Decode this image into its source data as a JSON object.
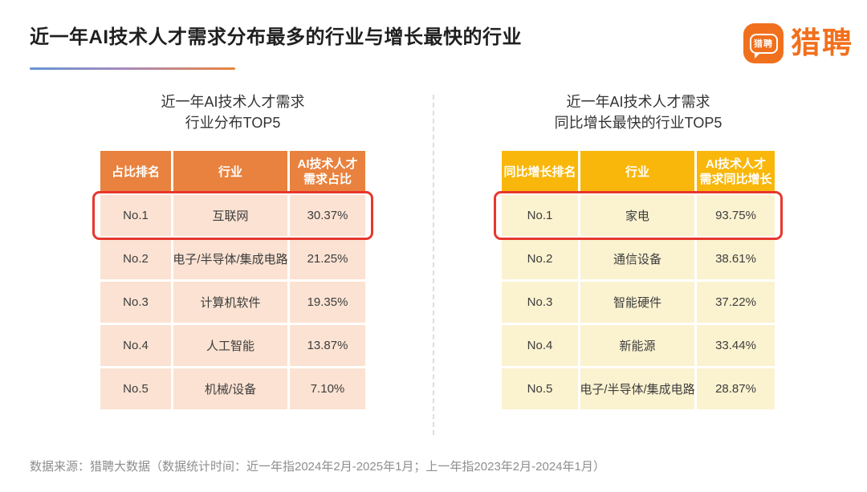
{
  "page": {
    "title": "近一年AI技术人才需求分布最多的行业与增长最快的行业",
    "footer": "数据来源：猎聘大数据（数据统计时间：近一年指2024年2月-2025年1月；上一年指2023年2月-2024年1月）"
  },
  "logo": {
    "brand": "猎聘",
    "icon_text": "猎聘"
  },
  "display": {
    "left": {
      "title": "近一年AI技术人才需求\n行业分布TOP5",
      "headers": [
        "占比排名",
        "行业",
        "AI技术人才\n需求占比"
      ]
    },
    "right": {
      "title": "近一年AI技术人才需求\n同比增长最快的行业TOP5",
      "headers": [
        "同比增长排名",
        "行业",
        "AI技术人才\n需求同比增长"
      ]
    }
  },
  "colors": {
    "brand_orange": "#F1701D",
    "left_header_bg": "#E8823E",
    "left_row_bg": "#FBE2D2",
    "right_header_bg": "#F9B70B",
    "right_row_bg": "#FBF2D0",
    "highlight_red": "#E7372C",
    "underline_gradient_start": "#6395D2",
    "underline_gradient_end": "#E8833C"
  },
  "chart_data": [
    {
      "type": "table",
      "title": "近一年AI技术人才需求 行业分布TOP5",
      "columns": [
        "占比排名",
        "行业",
        "AI技术人才需求占比"
      ],
      "rows": [
        [
          "No.1",
          "互联网",
          "30.37%"
        ],
        [
          "No.2",
          "电子/半导体/集成电路",
          "21.25%"
        ],
        [
          "No.3",
          "计算机软件",
          "19.35%"
        ],
        [
          "No.4",
          "人工智能",
          "13.87%"
        ],
        [
          "No.5",
          "机械/设备",
          "7.10%"
        ]
      ],
      "highlight_row": 0
    },
    {
      "type": "table",
      "title": "近一年AI技术人才需求 同比增长最快的行业TOP5",
      "columns": [
        "同比增长排名",
        "行业",
        "AI技术人才需求同比增长"
      ],
      "rows": [
        [
          "No.1",
          "家电",
          "93.75%"
        ],
        [
          "No.2",
          "通信设备",
          "38.61%"
        ],
        [
          "No.3",
          "智能硬件",
          "37.22%"
        ],
        [
          "No.4",
          "新能源",
          "33.44%"
        ],
        [
          "No.5",
          "电子/半导体/集成电路",
          "28.87%"
        ]
      ],
      "highlight_row": 0
    }
  ]
}
